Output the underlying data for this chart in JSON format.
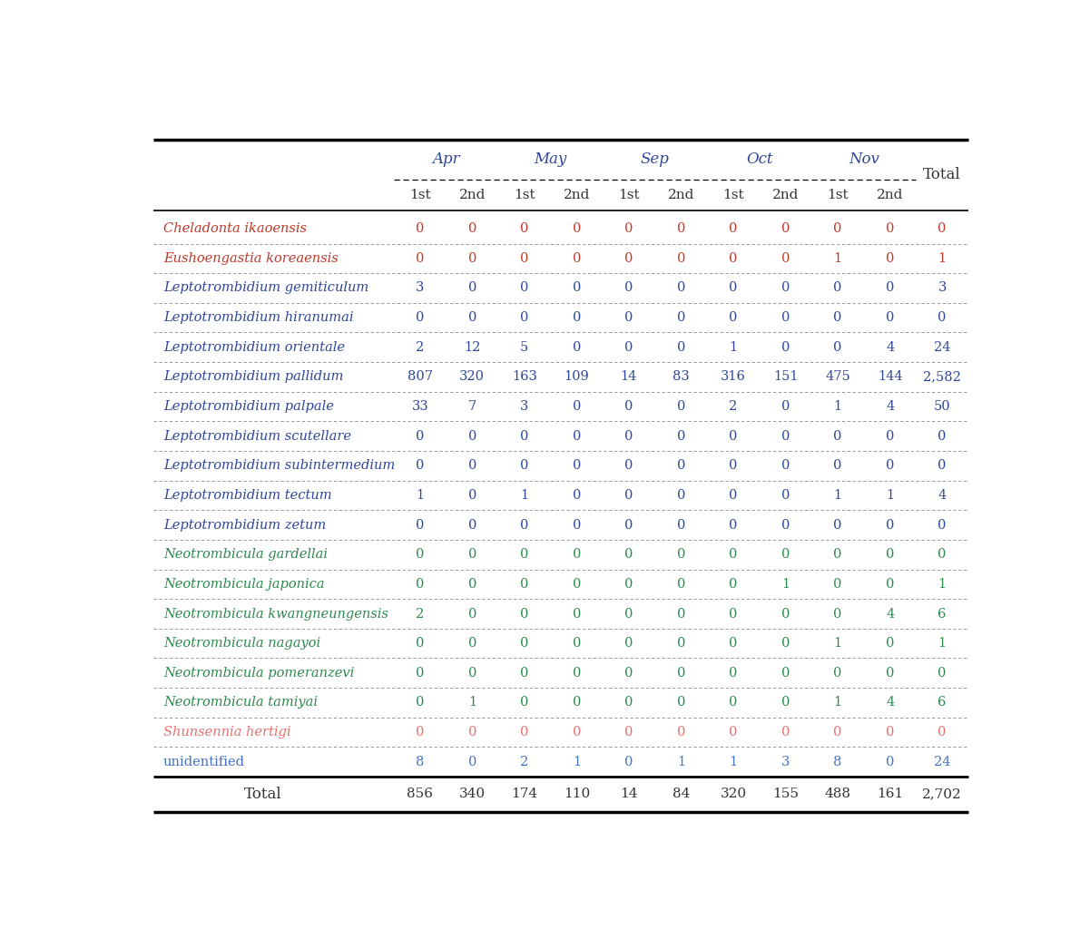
{
  "months": [
    "Apr",
    "May",
    "Sep",
    "Oct",
    "Nov"
  ],
  "sub_cols": [
    "1st",
    "2nd",
    "1st",
    "2nd",
    "1st",
    "2nd",
    "1st",
    "2nd",
    "1st",
    "2nd"
  ],
  "col_total": "Total",
  "species": [
    "Cheladonta ikaoensis",
    "Eushoengastia koreaensis",
    "Leptotrombidium gemiticulum",
    "Leptotrombidium hiranumai",
    "Leptotrombidium orientale",
    "Leptotrombidium pallidum",
    "Leptotrombidium palpale",
    "Leptotrombidium scutellare",
    "Leptotrombidium subintermedium",
    "Leptotrombidium tectum",
    "Leptotrombidium zetum",
    "Neotrombicula gardellai",
    "Neotrombicula japonica",
    "Neotrombicula kwangneungensis",
    "Neotrombicula nagayoi",
    "Neotrombicula pomeranzevi",
    "Neotrombicula tamiyai",
    "Shunsennia hertigi",
    "unidentified"
  ],
  "species_colors": [
    "#c0392b",
    "#c0392b",
    "#2e4699",
    "#2e4699",
    "#2e4699",
    "#2e4699",
    "#2e4699",
    "#2e4699",
    "#2e4699",
    "#2e4699",
    "#2e4699",
    "#2d8a4e",
    "#2d8a4e",
    "#2d8a4e",
    "#2d8a4e",
    "#2d8a4e",
    "#2d8a4e",
    "#e87070",
    "#4472c4"
  ],
  "species_italic": [
    true,
    true,
    true,
    true,
    true,
    true,
    true,
    true,
    true,
    true,
    true,
    true,
    true,
    true,
    true,
    true,
    true,
    true,
    false
  ],
  "formatted_data": [
    [
      "0",
      "0",
      "0",
      "0",
      "0",
      "0",
      "0",
      "0",
      "0",
      "0",
      "0"
    ],
    [
      "0",
      "0",
      "0",
      "0",
      "0",
      "0",
      "0",
      "0",
      "1",
      "0",
      "1"
    ],
    [
      "3",
      "0",
      "0",
      "0",
      "0",
      "0",
      "0",
      "0",
      "0",
      "0",
      "3"
    ],
    [
      "0",
      "0",
      "0",
      "0",
      "0",
      "0",
      "0",
      "0",
      "0",
      "0",
      "0"
    ],
    [
      "2",
      "12",
      "5",
      "0",
      "0",
      "0",
      "1",
      "0",
      "0",
      "4",
      "24"
    ],
    [
      "807",
      "320",
      "163",
      "109",
      "14",
      "83",
      "316",
      "151",
      "475",
      "144",
      "2,582"
    ],
    [
      "33",
      "7",
      "3",
      "0",
      "0",
      "0",
      "2",
      "0",
      "1",
      "4",
      "50"
    ],
    [
      "0",
      "0",
      "0",
      "0",
      "0",
      "0",
      "0",
      "0",
      "0",
      "0",
      "0"
    ],
    [
      "0",
      "0",
      "0",
      "0",
      "0",
      "0",
      "0",
      "0",
      "0",
      "0",
      "0"
    ],
    [
      "1",
      "0",
      "1",
      "0",
      "0",
      "0",
      "0",
      "0",
      "1",
      "1",
      "4"
    ],
    [
      "0",
      "0",
      "0",
      "0",
      "0",
      "0",
      "0",
      "0",
      "0",
      "0",
      "0"
    ],
    [
      "0",
      "0",
      "0",
      "0",
      "0",
      "0",
      "0",
      "0",
      "0",
      "0",
      "0"
    ],
    [
      "0",
      "0",
      "0",
      "0",
      "0",
      "0",
      "0",
      "1",
      "0",
      "0",
      "1"
    ],
    [
      "2",
      "0",
      "0",
      "0",
      "0",
      "0",
      "0",
      "0",
      "0",
      "4",
      "6"
    ],
    [
      "0",
      "0",
      "0",
      "0",
      "0",
      "0",
      "0",
      "0",
      "1",
      "0",
      "1"
    ],
    [
      "0",
      "0",
      "0",
      "0",
      "0",
      "0",
      "0",
      "0",
      "0",
      "0",
      "0"
    ],
    [
      "0",
      "1",
      "0",
      "0",
      "0",
      "0",
      "0",
      "0",
      "1",
      "4",
      "6"
    ],
    [
      "0",
      "0",
      "0",
      "0",
      "0",
      "0",
      "0",
      "0",
      "0",
      "0",
      "0"
    ],
    [
      "8",
      "0",
      "2",
      "1",
      "0",
      "1",
      "1",
      "3",
      "8",
      "0",
      "24"
    ]
  ],
  "formatted_totals": [
    "856",
    "340",
    "174",
    "110",
    "14",
    "84",
    "320",
    "155",
    "488",
    "161",
    "2,702"
  ],
  "month_color": "#2e4699",
  "subcol_color": "#333333",
  "total_label_color": "#333333",
  "total_row_color": "#333333",
  "line_color_thick": "#000000",
  "line_color_dash": "#888888"
}
